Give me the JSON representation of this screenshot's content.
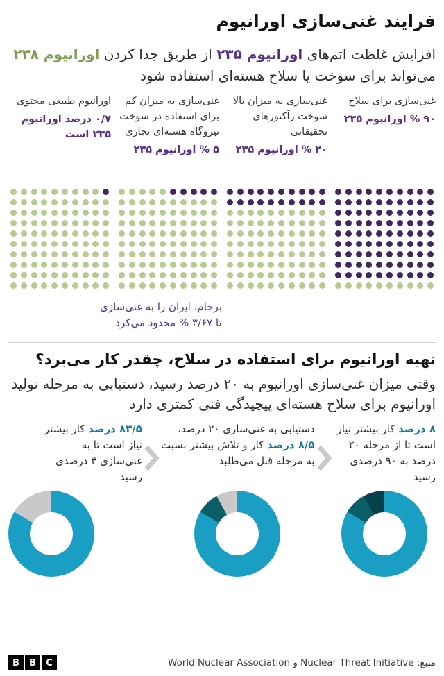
{
  "colors": {
    "purple": "#43265f",
    "purple_text": "#5b2e87",
    "green": "#b5cb91",
    "green_text": "#7f9c51",
    "teal": "#1b9ec4",
    "dark_teal": "#0b5e66",
    "darkest_teal": "#07424a",
    "gray": "#c9c9c9",
    "highlight_text": "#0e7d99"
  },
  "header": {
    "title": "فرایند غنی‌سازی اورانیوم",
    "intro": {
      "part1": "افزایش غلظت اتم‌های ",
      "u235": "اورانیوم ۲۳۵",
      "part2": " از طریق جدا کردن ",
      "u238": "اورانیوم ۲۳۸",
      "part3": " می‌تواند برای سوخت یا سلاح هسته‌ای استفاده شود"
    }
  },
  "grids": [
    {
      "label": "غنی‌سازی برای سلاح",
      "value": "۹۰ % اورانیوم ۲۳۵",
      "purple_dots": 90
    },
    {
      "label": "غنی‌سازی به میزان بالا سوخت رآکتورهای تحقیقاتی",
      "value": "۲۰ % اورانیوم ۲۳۵",
      "purple_dots": 20
    },
    {
      "label": "غنی‌سازی به میزان کم برای استفاده در سوخت نیروگاه هسته‌ای تجاری",
      "value": "۵ % اورانیوم ۲۳۵",
      "purple_dots": 5
    },
    {
      "label": "اورانیوم طبیعی محتوی",
      "value": "۰/۷ درصد اورانیوم ۲۳۵ است",
      "purple_dots": 1
    }
  ],
  "jcpoa_note": {
    "line1": "برجام، ایران را به غنی‌سازی",
    "line2": "تا ۳/۶۷ % محدود می‌کرد"
  },
  "section2": {
    "title": "تهیه اورانیوم برای استفاده در سلاح، چقدر کار می‌برد؟",
    "body": "وقتی میزان غنی‌سازی اورانیوم به ۲۰ درصد رسید، دستیابی به مرحله تولید اورانیوم برای سلاح هسته‌ای پیچیدگی فنی کمتری دارد"
  },
  "donuts": [
    {
      "prefix": "",
      "highlight": "۸ درصد",
      "rest": " کار بیشتر نیاز است تا از مرحله ۲۰ درصد به ۹۰ درصدی رسید",
      "segments": [
        {
          "color": "teal",
          "pct": 83.5
        },
        {
          "color": "dark_teal",
          "pct": 8.5
        },
        {
          "color": "darkest_teal",
          "pct": 8
        }
      ]
    },
    {
      "prefix": "دستیابی به غنی‌سازی ۲۰ درصد، ",
      "highlight": "۸/۵ درصد",
      "rest": " کار و تلاش بیشتر نسبت به مرحله قبل می‌طلبد",
      "segments": [
        {
          "color": "teal",
          "pct": 83.5
        },
        {
          "color": "dark_teal",
          "pct": 8.5
        },
        {
          "color": "gray",
          "pct": 8
        }
      ]
    },
    {
      "prefix": "",
      "highlight": "۸۳/۵ درصد",
      "rest": " کار بیشتر نیاز است تا به غنی‌سازی ۴ درصدی رسید",
      "segments": [
        {
          "color": "teal",
          "pct": 83.5
        },
        {
          "color": "gray",
          "pct": 16.5
        }
      ]
    }
  ],
  "footer": {
    "source": "منبع: Nuclear Threat Initiative و World Nuclear Association",
    "logo_letters": [
      "B",
      "B",
      "C"
    ]
  },
  "chart_data": [
    {
      "type": "dot-matrix",
      "title": "فرایند غنی‌سازی اورانیوم",
      "categories": [
        "غنی‌سازی برای سلاح",
        "غنی‌سازی به میزان بالا سوخت رآکتورهای تحقیقاتی",
        "غنی‌سازی به میزان کم برای استفاده در سوخت نیروگاه هسته‌ای تجاری",
        "اورانیوم طبیعی محتوی"
      ],
      "values_percent_u235": [
        90,
        20,
        5,
        0.7
      ],
      "value_labels": [
        "۹۰ % اورانیوم ۲۳۵",
        "۲۰ % اورانیوم ۲۳۵",
        "۵ % اورانیوم ۲۳۵",
        "۰/۷ درصد اورانیوم ۲۳۵ است"
      ],
      "dots_per_grid": 100,
      "annotation": "برجام، ایران را به غنی‌سازی تا ۳/۶۷ % محدود می‌کرد"
    },
    {
      "type": "pie",
      "title": "تهیه اورانیوم برای استفاده در سلاح، چقدر کار می‌برد؟",
      "series": [
        {
          "name": "از مرحله ۲۰ درصد به ۹۰ درصد",
          "label": "۸ درصد",
          "values": [
            83.5,
            8.5,
            8
          ],
          "segment_colors": [
            "teal",
            "dark_teal",
            "darkest_teal"
          ]
        },
        {
          "name": "دستیابی به غنی‌سازی ۲۰ درصد",
          "label": "۸/۵ درصد",
          "values": [
            83.5,
            8.5,
            8
          ],
          "segment_colors": [
            "teal",
            "dark_teal",
            "gray"
          ]
        },
        {
          "name": "رسیدن به غنی‌سازی ۴ درصد",
          "label": "۸۳/۵ درصد",
          "values": [
            83.5,
            16.5
          ],
          "segment_colors": [
            "teal",
            "gray"
          ]
        }
      ],
      "legend_position": "none"
    }
  ]
}
